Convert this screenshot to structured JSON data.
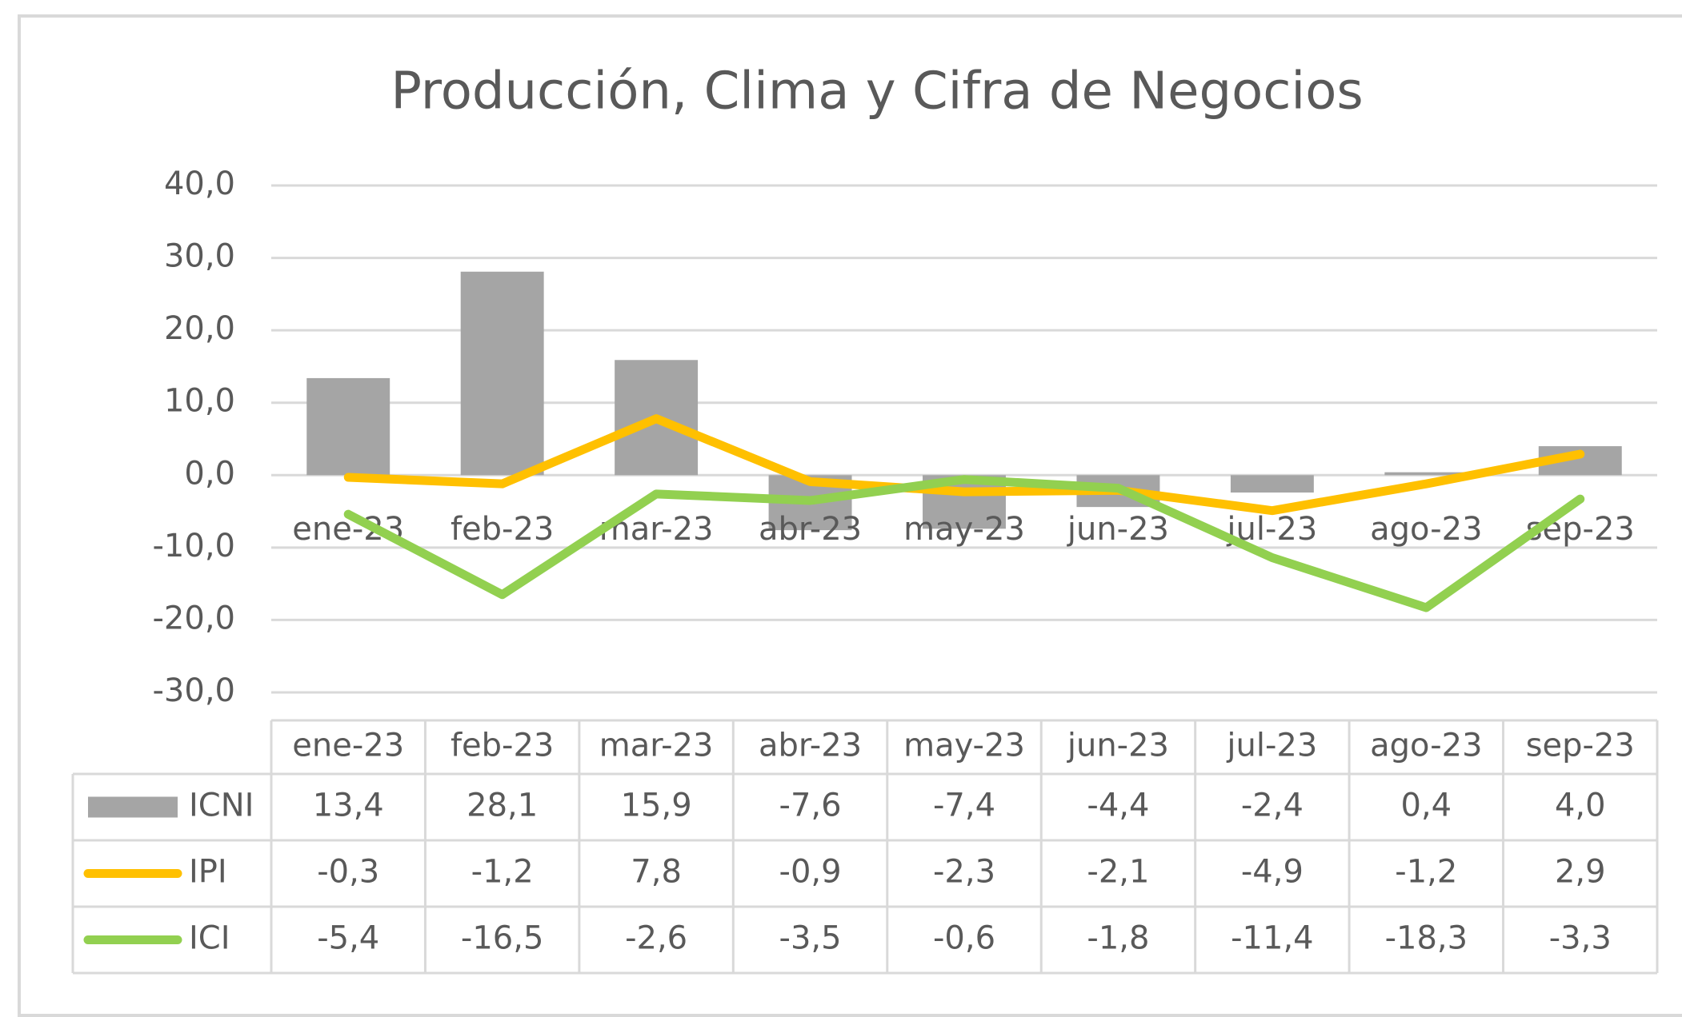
{
  "chart_data": {
    "type": "bar_line",
    "title": "Producción, Clima y Cifra de Negocios",
    "categories": [
      "ene-23",
      "feb-23",
      "mar-23",
      "abr-23",
      "may-23",
      "jun-23",
      "jul-23",
      "ago-23",
      "sep-23"
    ],
    "series": [
      {
        "name": "ICNI",
        "type": "bar",
        "color": "#a5a5a5",
        "values": [
          13.4,
          28.1,
          15.9,
          -7.6,
          -7.4,
          -4.4,
          -2.4,
          0.4,
          4.0
        ],
        "value_labels": [
          "13,4",
          "28,1",
          "15,9",
          "-7,6",
          "-7,4",
          "-4,4",
          "-2,4",
          "0,4",
          "4,0"
        ]
      },
      {
        "name": "IPI",
        "type": "line",
        "color": "#ffc000",
        "values": [
          -0.3,
          -1.2,
          7.8,
          -0.9,
          -2.3,
          -2.1,
          -4.9,
          -1.2,
          2.9
        ],
        "value_labels": [
          "-0,3",
          "-1,2",
          "7,8",
          "-0,9",
          "-2,3",
          "-2,1",
          "-4,9",
          "-1,2",
          "2,9"
        ]
      },
      {
        "name": "ICI",
        "type": "line",
        "color": "#92d050",
        "values": [
          -5.4,
          -16.5,
          -2.6,
          -3.5,
          -0.6,
          -1.8,
          -11.4,
          -18.3,
          -3.3
        ],
        "value_labels": [
          "-5,4",
          "-16,5",
          "-2,6",
          "-3,5",
          "-0,6",
          "-1,8",
          "-11,4",
          "-18,3",
          "-3,3"
        ]
      }
    ],
    "ylim": [
      -30,
      40
    ],
    "yticks": [
      {
        "value": 40,
        "label": "40,0"
      },
      {
        "value": 30,
        "label": "30,0"
      },
      {
        "value": 20,
        "label": "20,0"
      },
      {
        "value": 10,
        "label": "10,0"
      },
      {
        "value": 0,
        "label": "0,0"
      },
      {
        "value": -10,
        "label": "-10,0"
      },
      {
        "value": -20,
        "label": "-20,0"
      },
      {
        "value": -30,
        "label": "-30,0"
      }
    ],
    "grid": true
  }
}
